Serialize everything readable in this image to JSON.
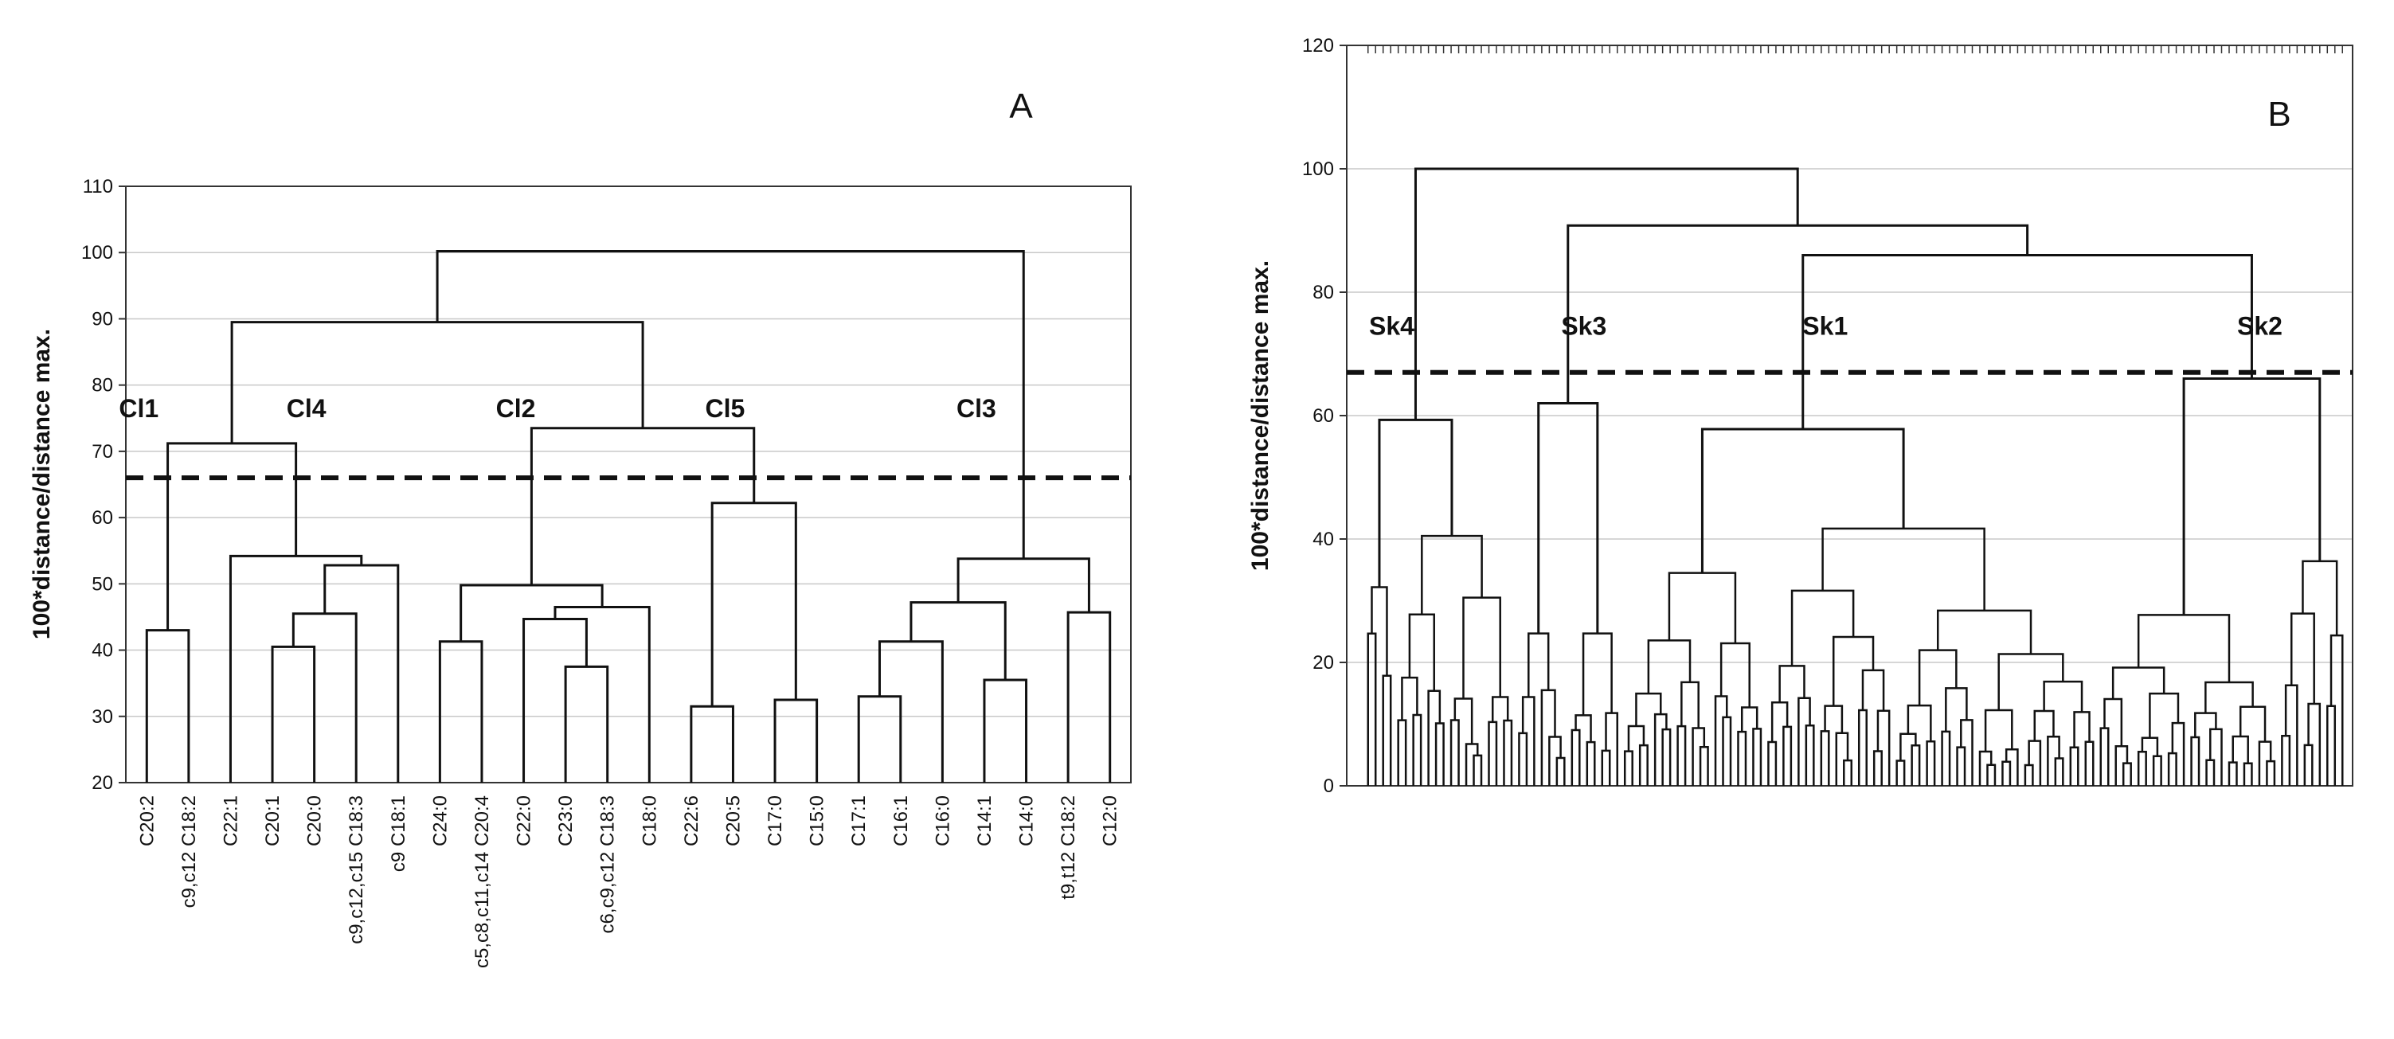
{
  "chart_data": [
    {
      "type": "dendrogram",
      "panel_label": "A",
      "ylabel": "100*distance/distance max.",
      "ylim": [
        20,
        110
      ],
      "yticks": [
        20,
        30,
        40,
        50,
        60,
        70,
        80,
        90,
        100,
        110
      ],
      "grid": true,
      "cut_height": 66,
      "leaves": [
        "C20:2",
        "c9,c12 C18:2",
        "C22:1",
        "C20:1",
        "C20:0",
        "c9,c12,c15 C18:3",
        "c9 C18:1",
        "C24:0",
        "c5,c8,c11,c14 C20:4",
        "C22:0",
        "C23:0",
        "c6,c9,c12 C18:3",
        "C18:0",
        "C22:6",
        "C20:5",
        "C17:0",
        "C15:0",
        "C17:1",
        "C16:1",
        "C16:0",
        "C14:1",
        "C14:0",
        "t9,t12 C18:2",
        "C12:0"
      ],
      "merges": [
        {
          "a": "L0",
          "b": "L1",
          "h": 43
        },
        {
          "a": "L3",
          "b": "L4",
          "h": 40.5
        },
        {
          "a": "M1",
          "b": "L5",
          "h": 45.5
        },
        {
          "a": "M2",
          "b": "L6",
          "h": 52.8
        },
        {
          "a": "L2",
          "b": "M3",
          "h": 54.2
        },
        {
          "a": "M0",
          "b": "M4",
          "h": 71.2
        },
        {
          "a": "L7",
          "b": "L8",
          "h": 41.3
        },
        {
          "a": "L10",
          "b": "L11",
          "h": 37.5
        },
        {
          "a": "L9",
          "b": "M7",
          "h": 44.7
        },
        {
          "a": "M8",
          "b": "L12",
          "h": 46.5
        },
        {
          "a": "M6",
          "b": "M9",
          "h": 49.8
        },
        {
          "a": "L13",
          "b": "L14",
          "h": 31.5
        },
        {
          "a": "L15",
          "b": "L16",
          "h": 32.5
        },
        {
          "a": "M11",
          "b": "M12",
          "h": 62.2
        },
        {
          "a": "M10",
          "b": "M13",
          "h": 73.5
        },
        {
          "a": "M5",
          "b": "M14",
          "h": 89.5
        },
        {
          "a": "L17",
          "b": "L18",
          "h": 33
        },
        {
          "a": "M16",
          "b": "L19",
          "h": 41.3
        },
        {
          "a": "L20",
          "b": "L21",
          "h": 35.5
        },
        {
          "a": "M17",
          "b": "M18",
          "h": 47.2
        },
        {
          "a": "L22",
          "b": "L23",
          "h": 45.7
        },
        {
          "a": "M19",
          "b": "M20",
          "h": 53.8
        },
        {
          "a": "M15",
          "b": "M21",
          "h": 100.2
        }
      ],
      "cluster_labels": [
        {
          "text": "Cl1",
          "near": "C20:2",
          "y": 76.5
        },
        {
          "text": "Cl4",
          "near": "C20:0",
          "y": 76.5
        },
        {
          "text": "Cl2",
          "near": "C22:0",
          "y": 76.5
        },
        {
          "text": "Cl5",
          "near": "C20:5",
          "y": 76.5
        },
        {
          "text": "Cl3",
          "near": "C14:1",
          "y": 76.5
        }
      ]
    },
    {
      "type": "dendrogram",
      "panel_label": "B",
      "ylabel": "100*distance/distance max.",
      "ylim": [
        0,
        120
      ],
      "yticks": [
        0,
        20,
        40,
        60,
        80,
        100,
        120
      ],
      "grid": true,
      "cut_height": 67,
      "leaf_count": 130,
      "major_clusters": [
        {
          "name": "Sk4",
          "height": 59.3,
          "leaf_range": [
            0,
            19
          ],
          "sub": [
            {
              "height": 32.2,
              "range": [
                0,
                3
              ]
            },
            {
              "height": 40.5,
              "range": [
                4,
                19
              ]
            }
          ]
        },
        {
          "name": "Sk3",
          "height": 62,
          "leaf_range": [
            20,
            33
          ],
          "sub": [
            {
              "height": 24.7,
              "range": [
                20,
                26
              ]
            },
            {
              "height": 24.7,
              "range": [
                27,
                33
              ]
            }
          ]
        },
        {
          "name": "Sk1",
          "height": 57.8,
          "leaf_range": [
            34,
            96
          ],
          "sub": [
            {
              "height": 34.5,
              "range": [
                34,
                52
              ]
            },
            {
              "height": 41.7,
              "range": [
                53,
                96
              ]
            }
          ]
        },
        {
          "name": "Sk2",
          "height": 66,
          "leaf_range": [
            97,
            129
          ],
          "sub": [
            {
              "height": 27.7,
              "range": [
                97,
                120
              ]
            },
            {
              "height": 36.4,
              "range": [
                121,
                129
              ]
            }
          ]
        }
      ],
      "top_merges": [
        {
          "a": "Sk1",
          "b": "Sk2",
          "h": 86
        },
        {
          "a": "Sk3",
          "b": "Sk1+Sk2",
          "h": 90.8
        },
        {
          "a": "Sk4",
          "b": "Sk3+Sk1+Sk2",
          "h": 100
        }
      ],
      "cluster_labels": [
        {
          "text": "Sk4",
          "y": 74.5
        },
        {
          "text": "Sk3",
          "y": 74.5
        },
        {
          "text": "Sk1",
          "y": 74.5
        },
        {
          "text": "Sk2",
          "y": 74.5
        }
      ]
    }
  ],
  "colors": {
    "line": "#111111",
    "grid": "#c8c8c8",
    "cut": "#111111",
    "background": "#ffffff"
  }
}
